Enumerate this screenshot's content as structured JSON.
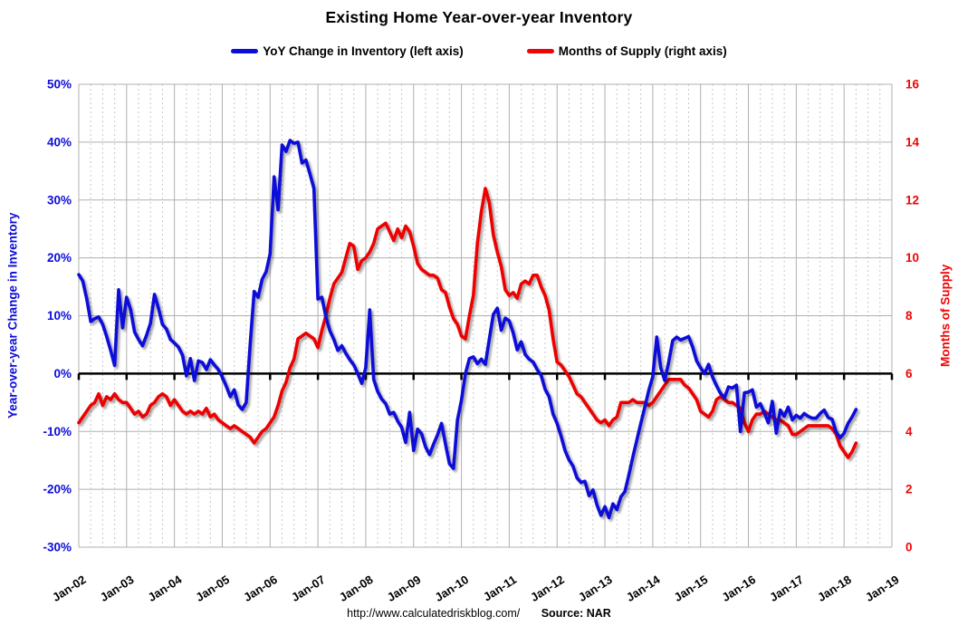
{
  "title": "Existing Home Year-over-year Inventory",
  "legend": [
    {
      "label": "YoY Change in Inventory (left axis)",
      "color": "#0d0dd9"
    },
    {
      "label": "Months of Supply (right axis)",
      "color": "#ee0505"
    }
  ],
  "footer": {
    "url": "http://www.calculatedriskblog.com/",
    "source": "Source: NAR"
  },
  "chart_data": {
    "type": "line",
    "title": "Existing Home Year-over-year Inventory",
    "frequency": "monthly",
    "start_month": "2002-01",
    "end_month": "2018-04",
    "grid": {
      "horizontal": "solid every 10% (left) / 2 (right)",
      "vertical": "solid yearly, dashed quarterly"
    },
    "x_tick_labels": [
      "Jan-02",
      "Jan-03",
      "Jan-04",
      "Jan-05",
      "Jan-06",
      "Jan-07",
      "Jan-08",
      "Jan-09",
      "Jan-10",
      "Jan-11",
      "Jan-12",
      "Jan-13",
      "Jan-14",
      "Jan-15",
      "Jan-16",
      "Jan-17",
      "Jan-18",
      "Jan-19"
    ],
    "left_axis": {
      "title": "Year-over-year Change in Inventory",
      "ticks": [
        "50%",
        "40%",
        "30%",
        "20%",
        "10%",
        "0%",
        "-10%",
        "-20%",
        "-30%"
      ],
      "range": [
        -30,
        50
      ],
      "color": "#0d0dd9"
    },
    "right_axis": {
      "title": "Months of Supply",
      "ticks": [
        "16",
        "14",
        "12",
        "10",
        "8",
        "6",
        "4",
        "2",
        "0"
      ],
      "range": [
        0,
        16
      ],
      "color": "#ee0505"
    },
    "zero_line": {
      "value_left_axis": 0,
      "value_right_axis": 6,
      "color": "#000000"
    },
    "series": [
      {
        "name": "YoY Change in Inventory (left axis)",
        "axis": "left",
        "unit": "%",
        "color": "#0d0dd9",
        "values": [
          17.1,
          16.0,
          12.9,
          9.0,
          9.5,
          9.8,
          8.5,
          6.4,
          4.0,
          1.4,
          14.5,
          7.9,
          13.2,
          11.1,
          7.2,
          5.9,
          4.8,
          6.6,
          8.7,
          13.7,
          11.3,
          8.5,
          7.7,
          5.9,
          5.3,
          4.6,
          3.2,
          -0.4,
          2.6,
          -1.2,
          2.2,
          1.9,
          0.7,
          2.4,
          1.5,
          0.7,
          -0.6,
          -2.2,
          -4.0,
          -2.8,
          -5.4,
          -6.2,
          -5.0,
          5.1,
          14.2,
          13.2,
          16.3,
          17.6,
          20.7,
          34.0,
          28.3,
          39.5,
          38.4,
          40.3,
          39.8,
          40.0,
          36.4,
          36.9,
          34.5,
          32.0,
          12.9,
          13.2,
          9.8,
          7.4,
          5.9,
          4.0,
          4.8,
          3.5,
          2.4,
          1.5,
          0.0,
          -1.7,
          1.0,
          11.0,
          -1.0,
          -3.1,
          -4.4,
          -5.2,
          -7.0,
          -6.7,
          -8.2,
          -9.3,
          -11.9,
          -6.7,
          -13.3,
          -9.6,
          -10.4,
          -12.7,
          -14.0,
          -12.2,
          -10.6,
          -8.6,
          -12.2,
          -15.6,
          -16.4,
          -8.0,
          -4.6,
          0.0,
          2.6,
          2.9,
          1.7,
          2.5,
          1.6,
          6.0,
          10.2,
          11.3,
          7.5,
          9.6,
          9.1,
          7.0,
          4.1,
          5.5,
          3.3,
          2.5,
          2.0,
          0.7,
          -0.3,
          -2.7,
          -4.0,
          -7.0,
          -8.6,
          -10.8,
          -13.3,
          -14.9,
          -16.0,
          -18.0,
          -18.8,
          -18.6,
          -21.1,
          -20.1,
          -22.7,
          -24.5,
          -23.0,
          -24.9,
          -22.5,
          -23.5,
          -21.3,
          -20.4,
          -17.5,
          -14.4,
          -11.5,
          -8.6,
          -5.8,
          -2.9,
          -0.5,
          6.3,
          1.0,
          -1.2,
          2.0,
          5.7,
          6.3,
          5.8,
          6.1,
          6.4,
          4.6,
          2.2,
          1.0,
          0.0,
          1.6,
          -0.6,
          -2.1,
          -3.4,
          -4.2,
          -2.3,
          -2.5,
          -2.0,
          -10.0,
          -3.3,
          -3.2,
          -2.8,
          -5.8,
          -5.2,
          -6.8,
          -8.5,
          -4.8,
          -10.3,
          -6.3,
          -7.4,
          -5.8,
          -8.0,
          -7.2,
          -7.7,
          -6.9,
          -7.4,
          -7.7,
          -7.7,
          -6.9,
          -6.3,
          -7.6,
          -7.9,
          -10.1,
          -11.1,
          -10.3,
          -8.6,
          -7.5,
          -6.2
        ]
      },
      {
        "name": "Months of Supply (right axis)",
        "axis": "right",
        "unit": "months",
        "color": "#ee0505",
        "values": [
          4.3,
          4.5,
          4.7,
          4.9,
          5.0,
          5.3,
          4.9,
          5.2,
          5.1,
          5.3,
          5.1,
          5.0,
          5.0,
          4.8,
          4.6,
          4.7,
          4.5,
          4.6,
          4.9,
          5.0,
          5.2,
          5.3,
          5.2,
          4.9,
          5.1,
          4.9,
          4.7,
          4.6,
          4.7,
          4.6,
          4.7,
          4.6,
          4.8,
          4.5,
          4.6,
          4.4,
          4.3,
          4.2,
          4.1,
          4.2,
          4.1,
          4.0,
          3.9,
          3.8,
          3.6,
          3.8,
          4.0,
          4.1,
          4.3,
          4.5,
          4.9,
          5.4,
          5.7,
          6.2,
          6.5,
          7.2,
          7.3,
          7.4,
          7.3,
          7.2,
          6.9,
          7.5,
          8.0,
          8.6,
          9.1,
          9.3,
          9.5,
          10.0,
          10.5,
          10.4,
          9.6,
          9.9,
          10.0,
          10.2,
          10.5,
          11.0,
          11.1,
          11.2,
          10.9,
          10.6,
          11.0,
          10.7,
          11.1,
          10.9,
          10.4,
          9.8,
          9.6,
          9.5,
          9.4,
          9.4,
          9.3,
          8.9,
          8.8,
          8.3,
          7.9,
          7.7,
          7.3,
          7.2,
          8.0,
          8.7,
          10.5,
          11.6,
          12.4,
          11.9,
          10.8,
          10.2,
          9.7,
          8.9,
          8.7,
          8.8,
          8.6,
          9.1,
          9.2,
          9.1,
          9.4,
          9.4,
          9.0,
          8.7,
          8.2,
          7.2,
          6.4,
          6.3,
          6.1,
          5.9,
          5.6,
          5.3,
          5.2,
          5.0,
          4.8,
          4.6,
          4.4,
          4.3,
          4.4,
          4.2,
          4.4,
          4.5,
          5.0,
          5.0,
          5.0,
          5.1,
          5.0,
          5.0,
          5.0,
          4.9,
          5.0,
          5.2,
          5.4,
          5.6,
          5.8,
          5.8,
          5.8,
          5.8,
          5.6,
          5.5,
          5.3,
          5.1,
          4.7,
          4.6,
          4.5,
          4.7,
          5.1,
          5.2,
          5.1,
          5.0,
          5.0,
          4.9,
          4.8,
          4.3,
          4.0,
          4.4,
          4.6,
          4.6,
          4.7,
          4.6,
          4.5,
          4.4,
          4.4,
          4.3,
          4.2,
          3.9,
          3.9,
          4.0,
          4.1,
          4.2,
          4.2,
          4.2,
          4.2,
          4.2,
          4.2,
          4.1,
          3.9,
          3.5,
          3.3,
          3.1,
          3.3,
          3.6
        ]
      }
    ]
  }
}
